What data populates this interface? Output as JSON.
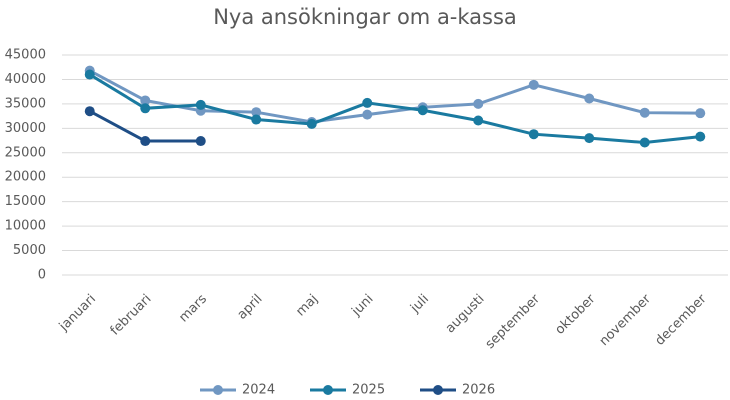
{
  "chart_data": {
    "type": "line",
    "title": "Nya ansökningar om a-kassa",
    "categories": [
      "januari",
      "februari",
      "mars",
      "april",
      "maj",
      "juni",
      "juli",
      "augusti",
      "september",
      "oktober",
      "november",
      "december"
    ],
    "series": [
      {
        "name": "2024",
        "color": "#7097c2",
        "values": [
          41800,
          35700,
          33600,
          33300,
          31300,
          32800,
          34300,
          35000,
          38900,
          36100,
          33200,
          33100
        ]
      },
      {
        "name": "2025",
        "color": "#1a7aa0",
        "values": [
          41000,
          34100,
          34800,
          31800,
          30900,
          35200,
          33700,
          31600,
          28800,
          28000,
          27100,
          28300
        ]
      },
      {
        "name": "2026",
        "color": "#1f4e86",
        "values": [
          33500,
          27400,
          27400,
          null,
          null,
          null,
          null,
          null,
          null,
          null,
          null,
          null
        ]
      }
    ],
    "ylim": [
      0,
      45000
    ],
    "yticks": [
      0,
      5000,
      10000,
      15000,
      20000,
      25000,
      30000,
      35000,
      40000,
      45000
    ],
    "grid": true,
    "legend": "bottom"
  }
}
